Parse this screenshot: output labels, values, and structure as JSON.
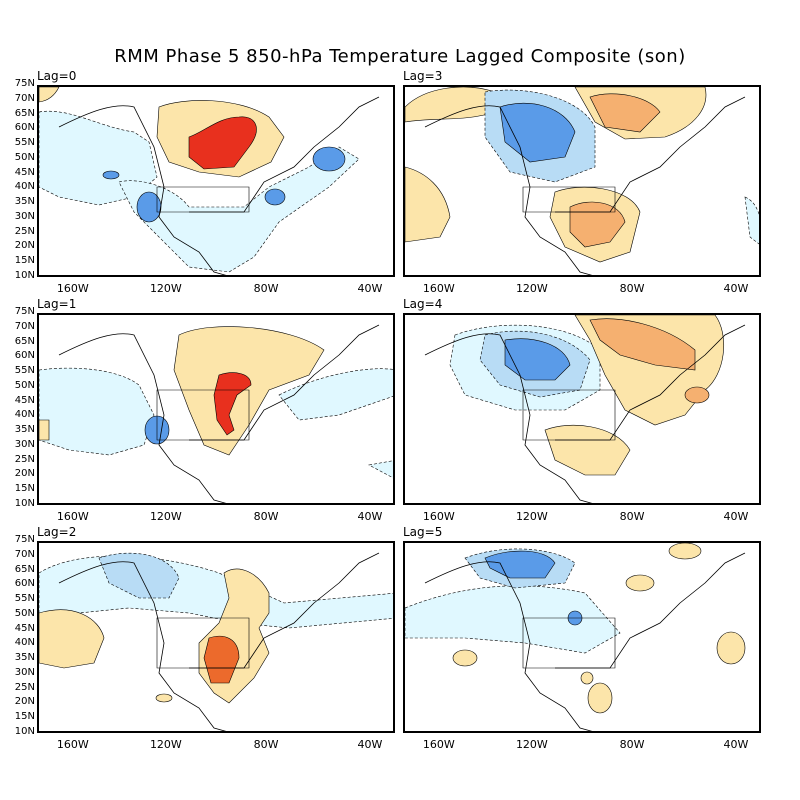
{
  "title": "RMM Phase 5 850-hPa Temperature Lagged Composite (son)",
  "y_axis_labels": [
    "75N",
    "70N",
    "65N",
    "60N",
    "55N",
    "50N",
    "45N",
    "40N",
    "35N",
    "30N",
    "25N",
    "20N",
    "15N",
    "10N"
  ],
  "x_axis_labels": [
    "160W",
    "120W",
    "80W",
    "40W"
  ],
  "panels": [
    {
      "id": "lag0",
      "label": "Lag=0"
    },
    {
      "id": "lag3",
      "label": "Lag=3"
    },
    {
      "id": "lag1",
      "label": "Lag=1"
    },
    {
      "id": "lag4",
      "label": "Lag=4"
    },
    {
      "id": "lag2",
      "label": "Lag=2"
    },
    {
      "id": "lag5",
      "label": "Lag=5"
    }
  ],
  "colors": {
    "cold_light": "#e0f8ff",
    "cold_mid": "#b8dcf5",
    "cold_strong": "#5a9be8",
    "warm_light": "#fce5aa",
    "warm_mid": "#f5b070",
    "warm_strong": "#ec6a2c",
    "warm_extreme": "#e8301e",
    "coast": "#000000"
  }
}
